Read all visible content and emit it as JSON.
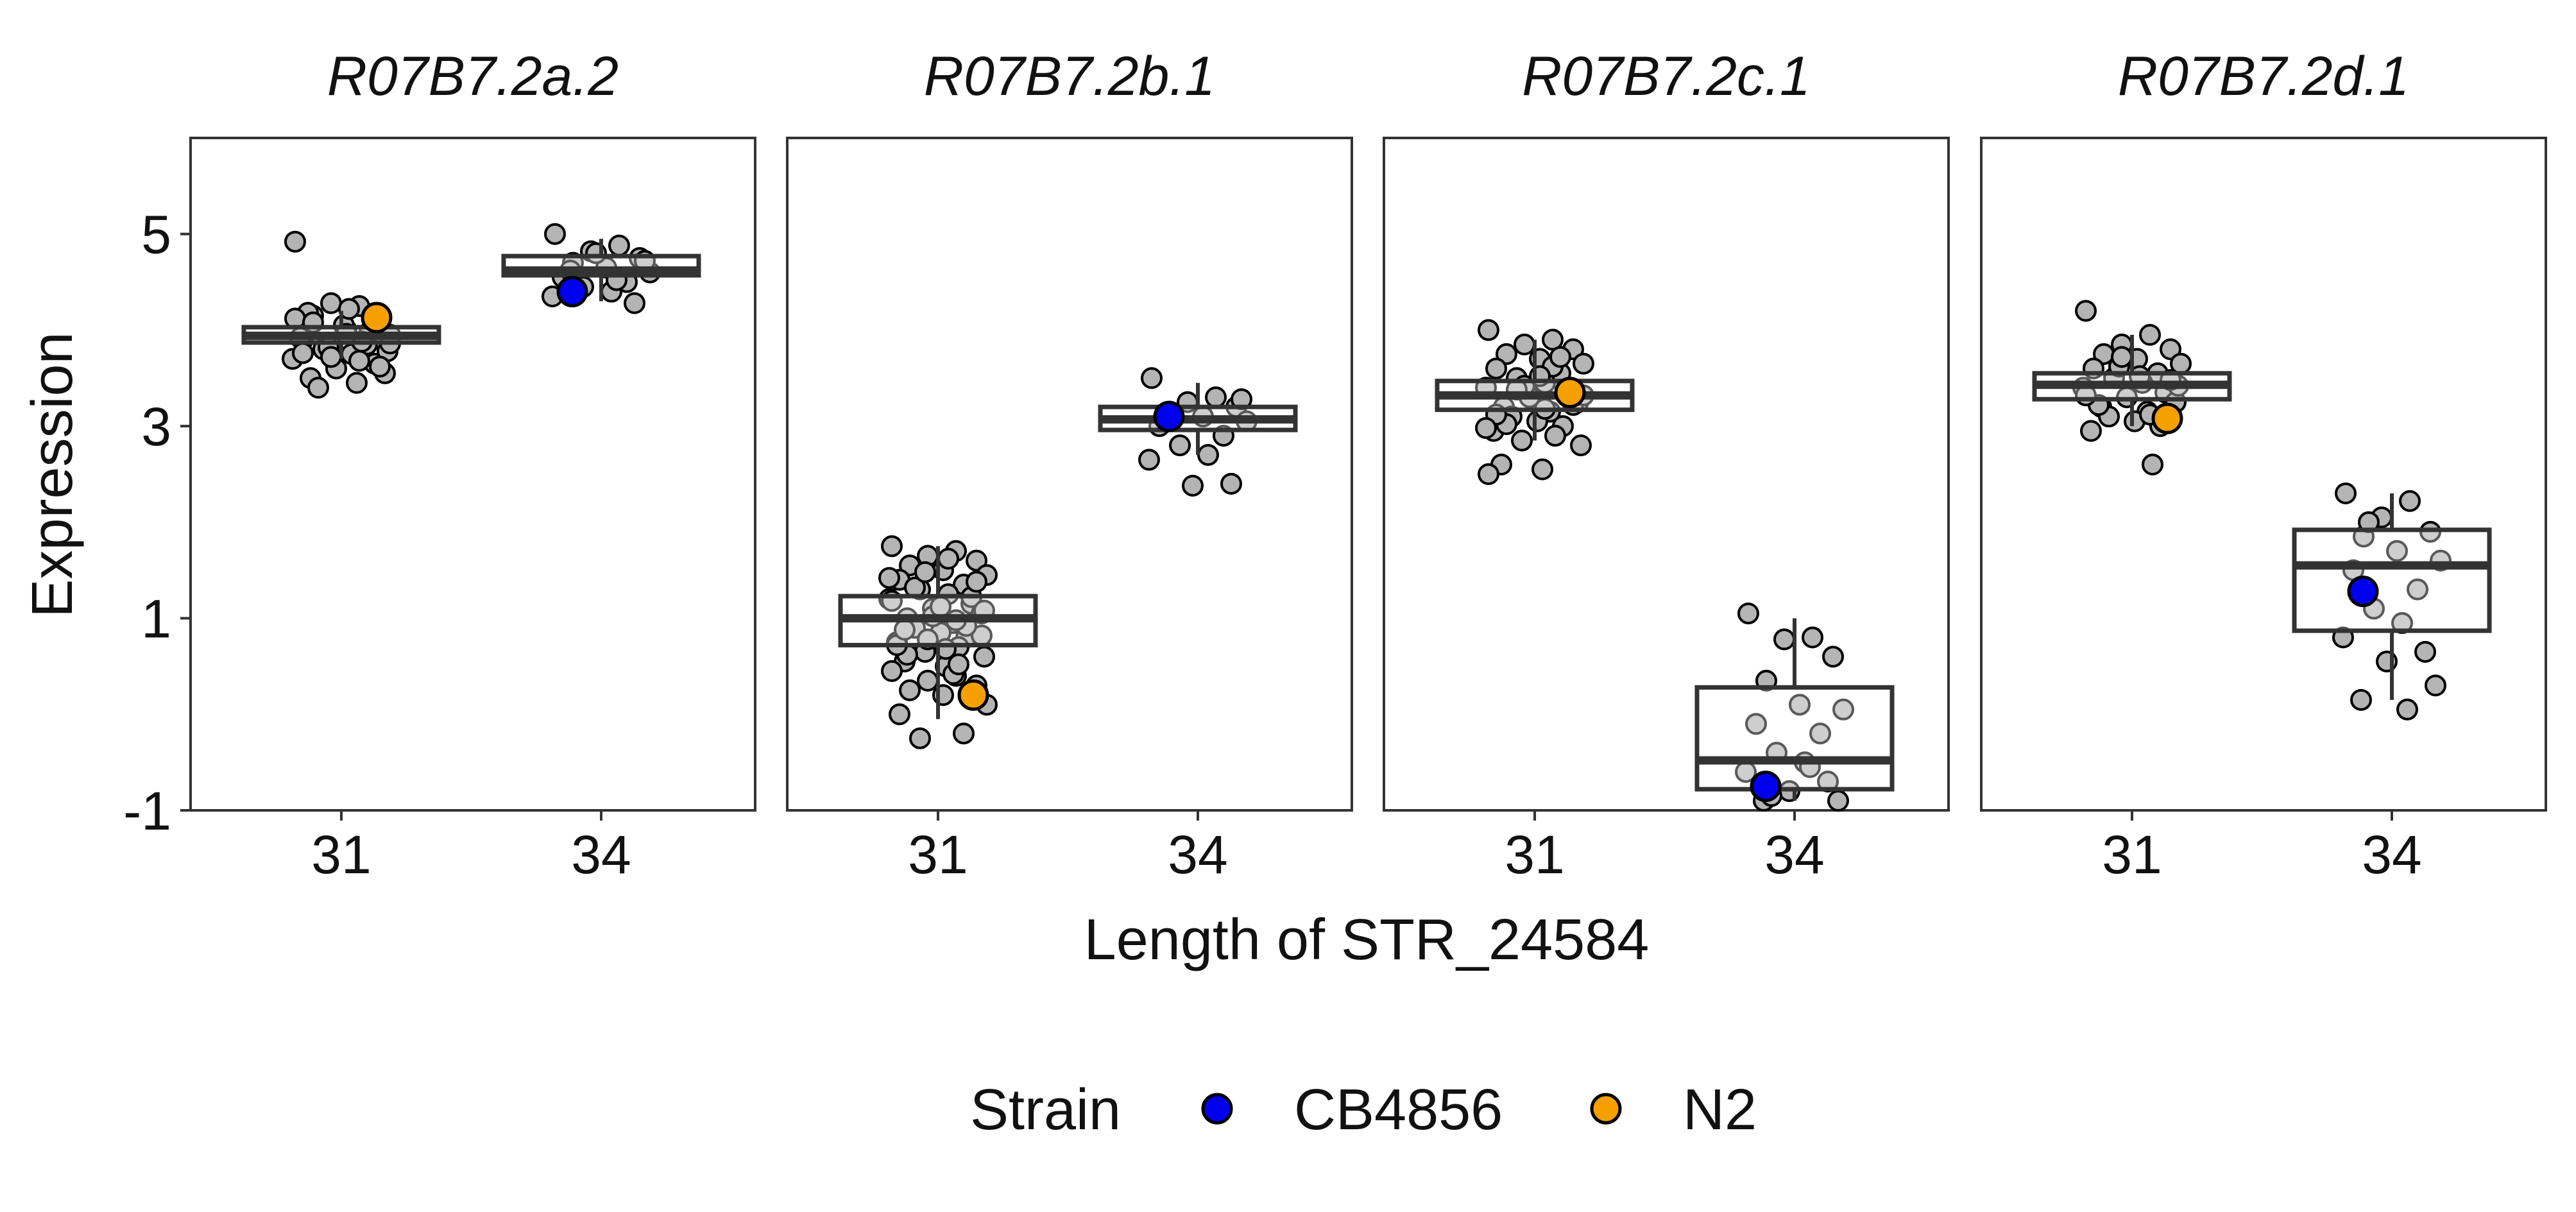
{
  "chart_data": {
    "type": "box",
    "xlabel": "Length of STR_24584",
    "ylabel": "Expression",
    "ylim": [
      -1,
      6
    ],
    "yticks": [
      -1,
      1,
      3,
      5
    ],
    "categories": [
      "31",
      "34"
    ],
    "grid": false,
    "legend": {
      "title": "Strain",
      "position": "bottom",
      "entries": [
        {
          "label": "CB4856",
          "color": "#0000ee"
        },
        {
          "label": "N2",
          "color": "#f5a000"
        }
      ]
    },
    "colors": {
      "point": "#b4b4b4",
      "box": "#333333",
      "CB4856": "#0000ee",
      "N2": "#f5a000"
    },
    "panels": [
      {
        "title": "R07B7.2a.2",
        "groups": [
          {
            "x": "31",
            "box": {
              "q1": 3.87,
              "median": 3.94,
              "q3": 4.03,
              "whisker_low": 3.7,
              "whisker_high": 4.2
            },
            "points": [
              4.92,
              4.25,
              4.28,
              4.1,
              4.15,
              4.0,
              3.95,
              3.9,
              3.85,
              3.8,
              3.75,
              3.7,
              3.65,
              3.6,
              3.55,
              3.5,
              3.45,
              3.4,
              4.05,
              3.98,
              3.92,
              3.88,
              3.82,
              3.78,
              4.18,
              4.22,
              4.12,
              3.68,
              3.72,
              3.62,
              4.08,
              3.96,
              3.86,
              3.76
            ]
          },
          {
            "x": "34",
            "box": {
              "q1": 4.57,
              "median": 4.62,
              "q3": 4.77,
              "whisker_low": 4.3,
              "whisker_high": 4.95
            },
            "points": [
              5.0,
              4.88,
              4.82,
              4.75,
              4.7,
              4.65,
              4.6,
              4.55,
              4.5,
              4.45,
              4.4,
              4.35,
              4.28,
              4.8,
              4.72,
              4.62,
              4.52
            ]
          }
        ],
        "strains": [
          {
            "name": "CB4856",
            "x": "34",
            "value": 4.4
          },
          {
            "name": "N2",
            "x": "31",
            "value": 4.13
          }
        ]
      },
      {
        "title": "R07B7.2b.1",
        "groups": [
          {
            "x": "31",
            "box": {
              "q1": 0.72,
              "median": 1.0,
              "q3": 1.23,
              "whisker_low": -0.05,
              "whisker_high": 1.75
            },
            "points": [
              1.75,
              1.7,
              1.65,
              1.6,
              1.55,
              1.5,
              1.45,
              1.4,
              1.35,
              1.3,
              1.25,
              1.2,
              1.15,
              1.1,
              1.05,
              1.0,
              0.95,
              0.9,
              0.85,
              0.8,
              0.75,
              0.7,
              0.65,
              0.6,
              0.55,
              0.5,
              0.45,
              0.4,
              0.35,
              0.3,
              0.25,
              0.2,
              0.1,
              0.0,
              -0.2,
              -0.25,
              1.62,
              1.42,
              1.22,
              1.02,
              0.82,
              0.62,
              0.42,
              1.32,
              1.12,
              0.92,
              0.72,
              0.52,
              1.48,
              1.08,
              0.88,
              0.68,
              1.18,
              0.98,
              0.78,
              1.38
            ]
          },
          {
            "x": "34",
            "box": {
              "q1": 2.96,
              "median": 3.07,
              "q3": 3.2,
              "whisker_low": 2.7,
              "whisker_high": 3.45
            },
            "points": [
              3.5,
              3.3,
              3.25,
              3.2,
              3.15,
              3.1,
              3.05,
              3.0,
              2.9,
              2.8,
              2.7,
              2.65,
              2.4,
              2.38,
              3.28,
              3.12
            ]
          }
        ],
        "strains": [
          {
            "name": "CB4856",
            "x": "34",
            "value": 3.1
          },
          {
            "name": "N2",
            "x": "31",
            "value": 0.2
          }
        ]
      },
      {
        "title": "R07B7.2c.1",
        "groups": [
          {
            "x": "31",
            "box": {
              "q1": 3.17,
              "median": 3.32,
              "q3": 3.47,
              "whisker_low": 2.85,
              "whisker_high": 3.9
            },
            "points": [
              4.0,
              3.9,
              3.85,
              3.8,
              3.75,
              3.7,
              3.65,
              3.6,
              3.55,
              3.5,
              3.45,
              3.4,
              3.35,
              3.3,
              3.25,
              3.2,
              3.15,
              3.1,
              3.05,
              3.0,
              2.95,
              2.9,
              2.85,
              2.8,
              2.6,
              2.55,
              2.5,
              3.62,
              3.42,
              3.22,
              3.02,
              3.52,
              3.32,
              3.12,
              3.72,
              3.38,
              3.18,
              2.98
            ]
          },
          {
            "x": "34",
            "box": {
              "q1": -0.78,
              "median": -0.48,
              "q3": 0.28,
              "whisker_low": -0.9,
              "whisker_high": 1.0
            },
            "points": [
              1.05,
              0.8,
              0.78,
              0.6,
              0.35,
              0.1,
              0.05,
              -0.1,
              -0.2,
              -0.4,
              -0.5,
              -0.6,
              -0.7,
              -0.8,
              -0.9,
              -0.9,
              -0.55,
              -0.85
            ]
          }
        ],
        "strains": [
          {
            "name": "CB4856",
            "x": "34",
            "value": -0.75
          },
          {
            "name": "N2",
            "x": "31",
            "value": 3.35
          }
        ]
      },
      {
        "title": "R07B7.2d.1",
        "groups": [
          {
            "x": "31",
            "box": {
              "q1": 3.28,
              "median": 3.43,
              "q3": 3.55,
              "whisker_low": 3.0,
              "whisker_high": 3.95
            },
            "points": [
              4.2,
              3.95,
              3.85,
              3.8,
              3.75,
              3.7,
              3.65,
              3.6,
              3.55,
              3.5,
              3.45,
              3.4,
              3.35,
              3.3,
              3.25,
              3.2,
              3.15,
              3.1,
              3.05,
              3.0,
              2.95,
              2.6,
              3.62,
              3.42,
              3.22,
              3.52,
              3.32,
              3.12,
              3.72,
              3.48
            ]
          },
          {
            "x": "34",
            "box": {
              "q1": 0.87,
              "median": 1.55,
              "q3": 1.92,
              "whisker_low": 0.15,
              "whisker_high": 2.3
            },
            "points": [
              2.3,
              2.22,
              2.05,
              1.9,
              1.85,
              1.7,
              1.6,
              1.5,
              1.3,
              1.1,
              0.95,
              0.8,
              0.65,
              0.55,
              0.3,
              0.15,
              0.05,
              2.0
            ]
          }
        ],
        "strains": [
          {
            "name": "CB4856",
            "x": "34",
            "value": 1.28
          },
          {
            "name": "N2",
            "x": "31",
            "value": 3.08
          }
        ]
      }
    ]
  }
}
